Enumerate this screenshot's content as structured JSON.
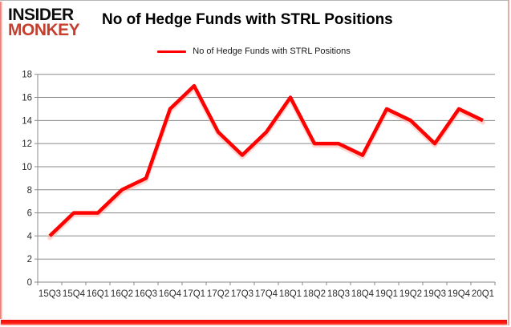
{
  "header": {
    "logo_line1": "INSIDER",
    "logo_line2": "MONKEY",
    "title": "No of Hedge Funds with STRL Positions"
  },
  "legend": {
    "label": "No of Hedge Funds with STRL Positions"
  },
  "chart_data": {
    "type": "line",
    "title": "No of Hedge Funds with STRL Positions",
    "categories": [
      "15Q3",
      "15Q4",
      "16Q1",
      "16Q2",
      "16Q3",
      "16Q4",
      "17Q1",
      "17Q2",
      "17Q3",
      "17Q4",
      "18Q1",
      "18Q2",
      "18Q3",
      "18Q4",
      "19Q1",
      "19Q2",
      "19Q3",
      "19Q4",
      "20Q1"
    ],
    "series": [
      {
        "name": "No of Hedge Funds with STRL Positions",
        "values": [
          4,
          6,
          6,
          8,
          9,
          15,
          17,
          13,
          11,
          13,
          16,
          12,
          12,
          11,
          15,
          14,
          12,
          15,
          14
        ]
      }
    ],
    "xlabel": "",
    "ylabel": "",
    "ylim": [
      0,
      18
    ],
    "yticks": [
      0,
      2,
      4,
      6,
      8,
      10,
      12,
      14,
      16,
      18
    ],
    "grid": true,
    "legend_position": "top"
  },
  "colors": {
    "line": "#ff0000",
    "line_glow": "#ffb3ab",
    "grid": "#8a8a8a",
    "axis": "#8a8a8a",
    "tick_label": "#2e2e2e",
    "logo_red": "#c63e2d",
    "accent_bottom": "#ff1e14"
  }
}
